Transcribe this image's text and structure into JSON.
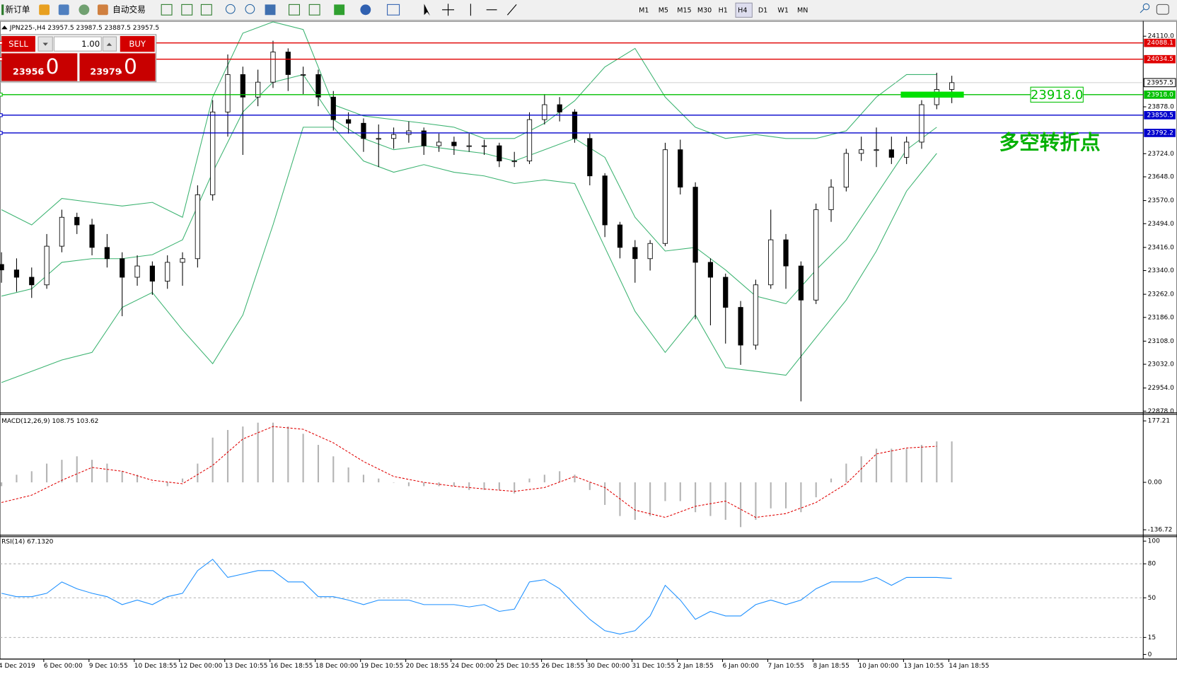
{
  "toolbar": {
    "new_order": "新订单",
    "auto_trade": "自动交易",
    "timeframes": [
      "M1",
      "M5",
      "M15",
      "M30",
      "H1",
      "H4",
      "D1",
      "W1",
      "MN"
    ],
    "active_timeframe": 5
  },
  "symbol_info": "JPN225-,H4  23957.5 23987.5 23887.5 23957.5",
  "trade_panel": {
    "sell": "SELL",
    "buy": "BUY",
    "lots": "1.00",
    "sell_price": "23956",
    "sell_fraction": ".0",
    "buy_price": "23979",
    "buy_fraction": ".0"
  },
  "chart_data": [
    {
      "type": "candlestick",
      "ylim": [
        22875,
        24155
      ],
      "yticks": [
        {
          "value": 24110,
          "label": "24110.0"
        },
        {
          "value": 23878,
          "label": "23878.0"
        },
        {
          "value": 23724,
          "label": "23724.0"
        },
        {
          "value": 23648,
          "label": "23648.0"
        },
        {
          "value": 23570,
          "label": "23570.0"
        },
        {
          "value": 23494,
          "label": "23494.0"
        },
        {
          "value": 23416,
          "label": "23416.0"
        },
        {
          "value": 23340,
          "label": "23340.0"
        },
        {
          "value": 23262,
          "label": "23262.0"
        },
        {
          "value": 23186,
          "label": "23186.0"
        },
        {
          "value": 23108,
          "label": "23108.0"
        },
        {
          "value": 23032,
          "label": "23032.0"
        },
        {
          "value": 22954,
          "label": "22954.0"
        },
        {
          "value": 22878,
          "label": "22878.0"
        }
      ],
      "candles": {
        "open": [
          23360,
          23342,
          23318,
          23293,
          23420,
          23515,
          23490,
          23416,
          23379,
          23318,
          23355,
          23305,
          23367,
          23379,
          23589,
          23861,
          23984,
          23910,
          23959,
          24058,
          23984,
          23984,
          23910,
          23836,
          23824,
          23774,
          23774,
          23787,
          23799,
          23750,
          23762,
          23750,
          23750,
          23750,
          23700,
          23700,
          23836,
          23885,
          23861,
          23774,
          23651,
          23490,
          23416,
          23379,
          23429,
          23737,
          23614,
          23367,
          23318,
          23219,
          23095,
          23293,
          23441,
          23355,
          23243,
          23540,
          23614,
          23725,
          23737,
          23737,
          23712,
          23762,
          23885,
          23935
        ],
        "high": [
          23400,
          23380,
          23350,
          23460,
          23540,
          23530,
          23510,
          23460,
          23400,
          23390,
          23370,
          23390,
          23400,
          23620,
          23900,
          24050,
          24010,
          24000,
          24095,
          24070,
          24010,
          24000,
          23930,
          23860,
          23840,
          23820,
          23810,
          23830,
          23810,
          23790,
          23780,
          23790,
          23770,
          23760,
          23730,
          23860,
          23920,
          23910,
          23870,
          23790,
          23660,
          23500,
          23440,
          23440,
          23760,
          23770,
          23630,
          23380,
          23330,
          23240,
          23310,
          23540,
          23460,
          23370,
          23560,
          23640,
          23740,
          23780,
          23810,
          23780,
          23780,
          23900,
          23990,
          23980
        ],
        "low": [
          23300,
          23270,
          23250,
          23280,
          23400,
          23460,
          23390,
          23350,
          23190,
          23290,
          23260,
          23280,
          23290,
          23350,
          23570,
          23780,
          23720,
          23880,
          23940,
          23930,
          23920,
          23880,
          23800,
          23790,
          23730,
          23680,
          23740,
          23760,
          23720,
          23730,
          23720,
          23730,
          23720,
          23680,
          23680,
          23690,
          23820,
          23830,
          23760,
          23620,
          23450,
          23380,
          23300,
          23340,
          23420,
          23590,
          23180,
          23160,
          23100,
          23030,
          23080,
          23280,
          23280,
          22910,
          23230,
          23500,
          23600,
          23700,
          23680,
          23690,
          23690,
          23740,
          23870,
          23890
        ],
        "close": [
          23342,
          23318,
          23293,
          23420,
          23515,
          23490,
          23416,
          23379,
          23318,
          23355,
          23305,
          23367,
          23379,
          23589,
          23861,
          23984,
          23910,
          23959,
          24058,
          23984,
          23984,
          23910,
          23836,
          23824,
          23774,
          23774,
          23787,
          23799,
          23750,
          23762,
          23750,
          23750,
          23750,
          23700,
          23700,
          23836,
          23885,
          23861,
          23774,
          23651,
          23490,
          23416,
          23379,
          23429,
          23737,
          23614,
          23367,
          23318,
          23219,
          23095,
          23293,
          23441,
          23355,
          23243,
          23540,
          23614,
          23725,
          23737,
          23737,
          23712,
          23762,
          23885,
          23935,
          23957.5
        ]
      },
      "bands_color": "#3cb371",
      "bands": [
        {
          "values": [
            23540,
            23490,
            23577,
            23564,
            23552,
            23564,
            23515,
            23910,
            24120,
            24157,
            24132,
            23885,
            23848,
            23836,
            23824,
            23811,
            23774,
            23774,
            23824,
            23898,
            24009,
            24070,
            23910,
            23811,
            23774,
            23787,
            23774,
            23774,
            23799,
            23910,
            23984,
            23984
          ]
        },
        {
          "values": [
            23256,
            23280,
            23367,
            23379,
            23379,
            23392,
            23441,
            23663,
            23861,
            23959,
            23984,
            23836,
            23774,
            23737,
            23750,
            23737,
            23725,
            23700,
            23737,
            23774,
            23712,
            23515,
            23404,
            23416,
            23342,
            23256,
            23231,
            23342,
            23441,
            23589,
            23737,
            23811
          ]
        },
        {
          "values": [
            22972,
            23009,
            23046,
            23071,
            23219,
            23268,
            23145,
            23034,
            23194,
            23490,
            23811,
            23811,
            23700,
            23663,
            23688,
            23663,
            23651,
            23626,
            23638,
            23626,
            23416,
            23206,
            23071,
            23194,
            23021,
            23009,
            22996,
            23120,
            23243,
            23404,
            23601,
            23725
          ]
        }
      ],
      "last_price": 23957.5,
      "levels": [
        {
          "price": 24088.1,
          "color": "#e00000"
        },
        {
          "price": 24034.5,
          "color": "#e00000"
        },
        {
          "price": {
            "value": 23918,
            "label": "23918.0"
          },
          "color": "#00c000"
        },
        {
          "price": 23850.5,
          "color": "#0000cc"
        },
        {
          "price": 23792.2,
          "color": "#0000cc"
        }
      ],
      "annotation": "多空转折点",
      "annotation_color": "#00b000",
      "highlight_color": "#00e000"
    },
    {
      "type": "macd",
      "label": "MACD(12,26,9) 108.75 103.62",
      "ylim": [
        -150,
        194
      ],
      "yticks": [
        177.21,
        {
          "value": 0,
          "label": "0.00"
        },
        -136.72
      ],
      "histogram": [
        -11,
        22,
        32,
        54,
        65,
        75,
        65,
        54,
        32,
        22,
        0,
        -11,
        11,
        54,
        129,
        151,
        161,
        172,
        172,
        161,
        140,
        108,
        75,
        43,
        22,
        11,
        0,
        -11,
        -11,
        -11,
        -11,
        -22,
        -22,
        -22,
        -32,
        11,
        22,
        32,
        22,
        -22,
        -65,
        -97,
        -108,
        -97,
        -54,
        -54,
        -86,
        -97,
        -108,
        -129,
        -108,
        -75,
        -75,
        -86,
        -43,
        11,
        54,
        75,
        97,
        97,
        97,
        108,
        118,
        118
      ],
      "histogram_color": "#b4b4b4",
      "signal": [
        -58,
        -37,
        6,
        43,
        32,
        6,
        -4,
        49,
        125,
        161,
        153,
        114,
        60,
        17,
        0,
        -11,
        -19,
        -26,
        -15,
        17,
        -15,
        -80,
        -101,
        -69,
        -54,
        -101,
        -90,
        -58,
        -4,
        82,
        99,
        104
      ],
      "signal_color": "#e00000"
    },
    {
      "type": "rsi",
      "label": "RSI(14) 67.1320",
      "ylim": [
        0,
        100
      ],
      "yticks": [
        100,
        80,
        50,
        15,
        0
      ],
      "color": "#1e90ff",
      "values": [
        54,
        51,
        51,
        54,
        64,
        58,
        54,
        51,
        44,
        48,
        44,
        51,
        54,
        74,
        84,
        68,
        71,
        74,
        74,
        64,
        64,
        51,
        51,
        48,
        44,
        48,
        48,
        48,
        44,
        44,
        44,
        42,
        44,
        38,
        40,
        64,
        66,
        58,
        44,
        31,
        21,
        18,
        21,
        34,
        61,
        48,
        31,
        38,
        34,
        34,
        44,
        48,
        44,
        48,
        58,
        64,
        64,
        64,
        68,
        61,
        68,
        68,
        68,
        67.13
      ],
      "x_labels": [
        "4 Dec 2019",
        "6 Dec 00:00",
        "9 Dec 10:55",
        "10 Dec 18:55",
        "12 Dec 00:00",
        "13 Dec 10:55",
        "16 Dec 18:55",
        "18 Dec 00:00",
        "19 Dec 10:55",
        "20 Dec 18:55",
        "24 Dec 00:00",
        "25 Dec 10:55",
        "26 Dec 18:55",
        "30 Dec 00:00",
        "31 Dec 10:55",
        "2 Jan 18:55",
        "6 Jan 00:00",
        "7 Jan 10:55",
        "8 Jan 18:55",
        "10 Jan 00:00",
        "13 Jan 10:55",
        "14 Jan 18:55"
      ]
    }
  ]
}
